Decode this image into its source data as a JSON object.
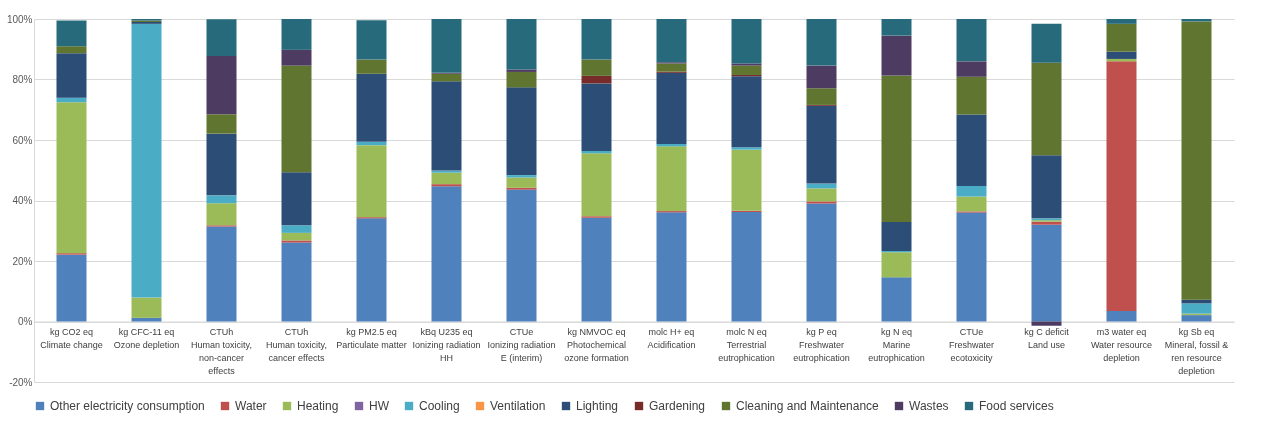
{
  "chart_data": {
    "type": "bar",
    "stacked": true,
    "categories": [
      "kg CO2 eq\nClimate change",
      "kg CFC-11 eq\nOzone depletion",
      "CTUh\nHuman toxicity,\nnon-cancer\neffects",
      "CTUh\nHuman toxicity,\ncancer effects",
      "kg PM2.5 eq\nParticulate matter",
      "kBq U235 eq\nIonizing radiation\nHH",
      "CTUe\nIonizing radiation\nE (interim)",
      "kg NMVOC eq\nPhotochemical\nozone formation",
      "molc H+ eq\nAcidification",
      "molc N eq\nTerrestrial\neutrophication",
      "kg P eq\nFreshwater\neutrophication",
      "kg N eq\nMarine\neutrophication",
      "CTUe\nFreshwater\necotoxicity",
      "kg C deficit\nLand use",
      "m3 water eq\nWater resource\ndepletion",
      "kg Sb eq\nMineral, fossil &\nren resource\ndepletion"
    ],
    "series": [
      {
        "name": "Other electricity consumption",
        "color": "#4f81bd",
        "values": [
          22.1,
          1.2,
          31.4,
          26.1,
          34.1,
          44.7,
          43.6,
          34.3,
          36.1,
          36.2,
          39.0,
          14.6,
          36.0,
          32.0,
          3.5,
          2.1
        ]
      },
      {
        "name": "Water",
        "color": "#c0504d",
        "values": [
          0.5,
          null,
          0.4,
          0.7,
          0.4,
          0.7,
          0.6,
          0.5,
          0.4,
          0.4,
          0.7,
          null,
          0.4,
          1.0,
          82.5,
          null
        ]
      },
      {
        "name": "Heating",
        "color": "#9bbb59",
        "values": [
          49.9,
          6.7,
          7.3,
          2.5,
          23.8,
          3.8,
          3.4,
          20.8,
          21.4,
          20.2,
          4.3,
          8.3,
          4.9,
          0.5,
          0.8,
          0.5
        ]
      },
      {
        "name": "HW",
        "color": "#8064a2",
        "values": [
          null,
          null,
          null,
          null,
          null,
          null,
          null,
          null,
          null,
          null,
          null,
          null,
          null,
          null,
          null,
          null
        ]
      },
      {
        "name": "Cooling",
        "color": "#4bacc6",
        "values": [
          1.5,
          90.5,
          2.6,
          2.5,
          1.1,
          0.7,
          0.8,
          0.8,
          0.8,
          0.8,
          1.6,
          0.4,
          3.5,
          0.6,
          null,
          3.4
        ]
      },
      {
        "name": "Ventilation",
        "color": "#f79646",
        "values": [
          null,
          null,
          null,
          null,
          null,
          null,
          null,
          null,
          null,
          null,
          null,
          null,
          null,
          null,
          null,
          null
        ]
      },
      {
        "name": "Lighting",
        "color": "#2c4d75",
        "values": [
          14.7,
          0.6,
          20.4,
          17.5,
          22.5,
          29.5,
          29.0,
          22.3,
          23.5,
          23.5,
          25.7,
          9.6,
          23.6,
          20.9,
          2.4,
          1.2
        ]
      },
      {
        "name": "Gardening",
        "color": "#772c2a",
        "values": [
          null,
          null,
          null,
          null,
          null,
          null,
          null,
          2.5,
          0.4,
          0.4,
          0.3,
          null,
          null,
          null,
          null,
          null
        ]
      },
      {
        "name": "Cleaning and Maintenance",
        "color": "#5f7530",
        "values": [
          2.3,
          0.5,
          6.4,
          35.3,
          4.7,
          2.5,
          5.1,
          5.4,
          2.7,
          3.1,
          5.5,
          48.4,
          12.5,
          30.5,
          9.2,
          92.0
        ]
      },
      {
        "name": "Wastes",
        "color": "#4d3b62",
        "values": [
          null,
          null,
          19.3,
          5.2,
          null,
          0.3,
          0.8,
          null,
          0.4,
          0.7,
          7.5,
          13.2,
          5.1,
          -1.4,
          null,
          null
        ]
      },
      {
        "name": "Food services",
        "color": "#276a7c",
        "values": [
          8.5,
          0.5,
          12.1,
          10.2,
          13.0,
          17.8,
          16.7,
          13.4,
          14.3,
          14.7,
          15.4,
          5.5,
          14.0,
          12.9,
          1.6,
          0.8
        ]
      }
    ],
    "ylim": [
      -20,
      100
    ],
    "yticks": [
      {
        "value": -20,
        "label": "-20%"
      },
      {
        "value": 0,
        "label": "0%"
      },
      {
        "value": 20,
        "label": "20%"
      },
      {
        "value": 40,
        "label": "40%"
      },
      {
        "value": 60,
        "label": "60%"
      },
      {
        "value": 80,
        "label": "80%"
      },
      {
        "value": 100,
        "label": "100%"
      }
    ],
    "grid": "y",
    "legend": "bottom"
  }
}
